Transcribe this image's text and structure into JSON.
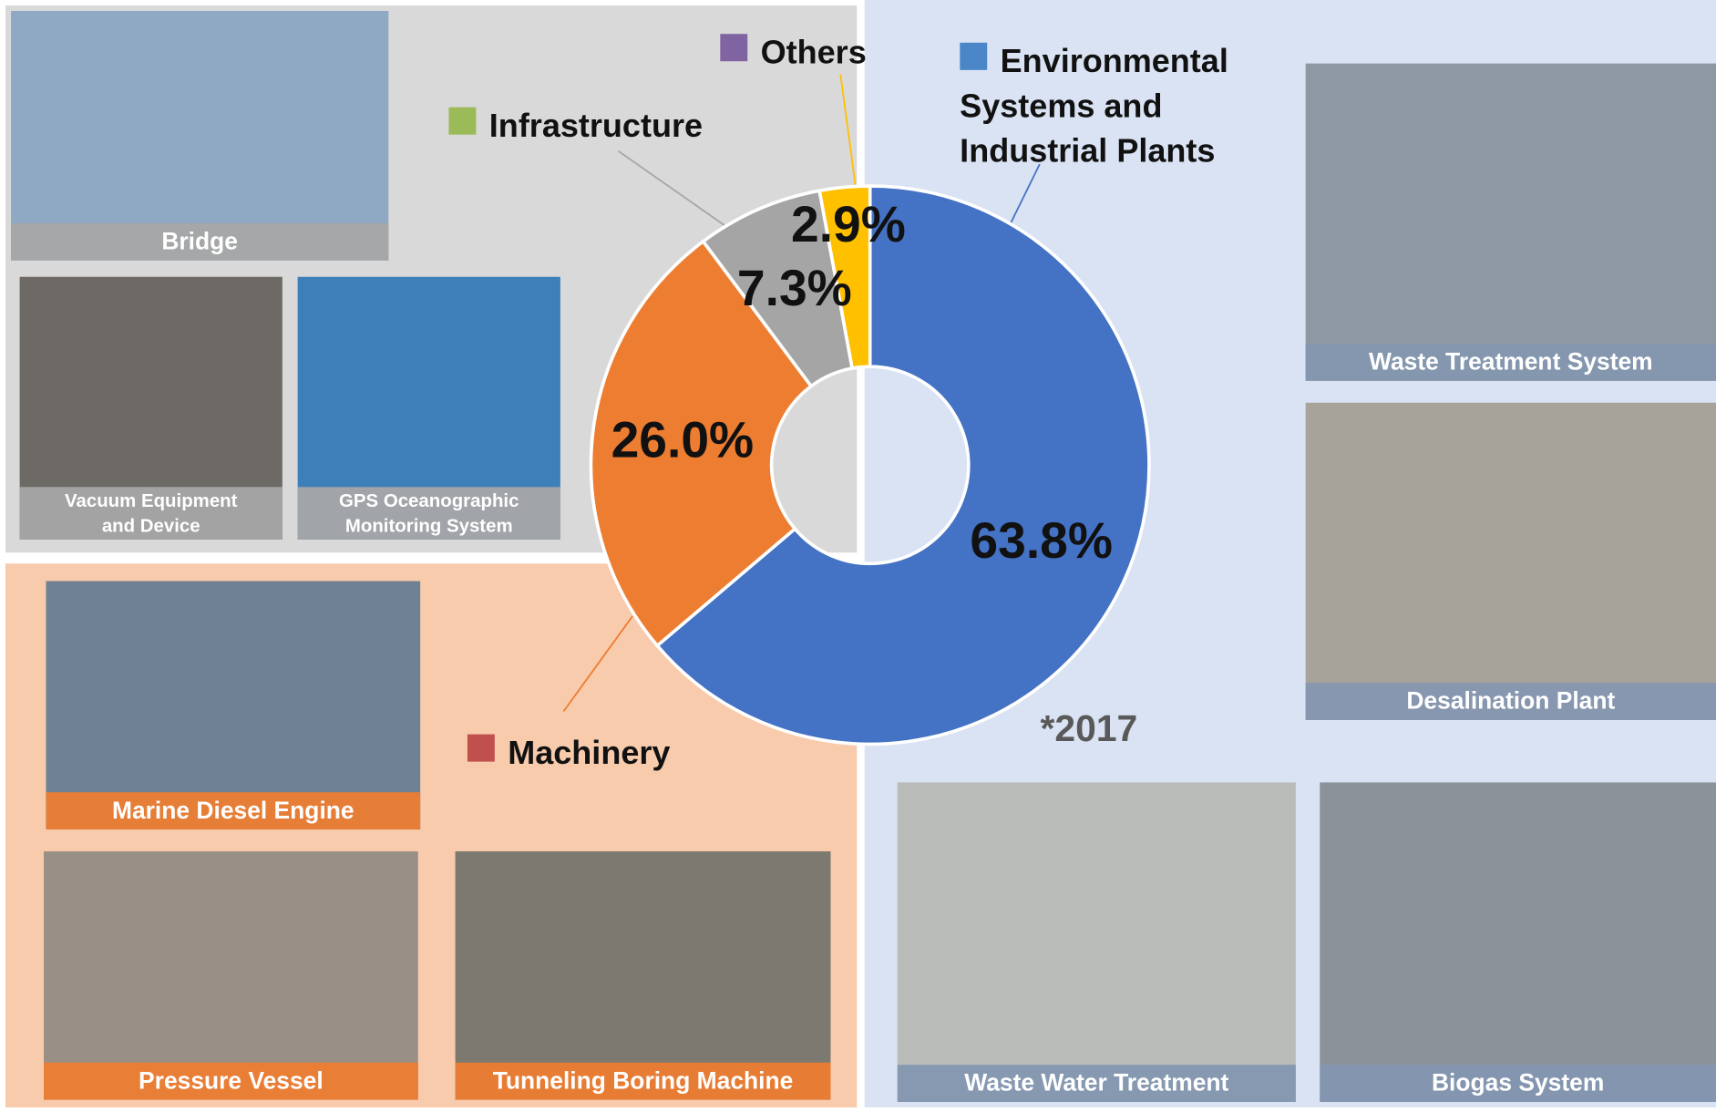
{
  "chart_data": {
    "type": "pie",
    "donut": true,
    "categories": [
      "Environmental Systems and Industrial Plants",
      "Machinery",
      "Infrastructure",
      "Others"
    ],
    "values": [
      63.8,
      26.0,
      7.3,
      2.9
    ],
    "value_labels": [
      "63.8%",
      "26.0%",
      "7.3%",
      "2.9%"
    ],
    "colors": [
      "#4472c4",
      "#ed7d31",
      "#a5a5a5",
      "#ffc000"
    ],
    "legend_colors": [
      "#4a86c8",
      "#c0504d",
      "#9bbb59",
      "#8064a2"
    ],
    "annotation": "*2017"
  },
  "photos": [
    "Bridge",
    "Vacuum Equipment and Device",
    "GPS Oceanographic Monitoring System",
    "Marine Diesel Engine",
    "Pressure Vessel",
    "Tunneling Boring Machine",
    "Waste Treatment System",
    "Desalination Plant",
    "Waste Water Treatment",
    "Biogas System"
  ]
}
